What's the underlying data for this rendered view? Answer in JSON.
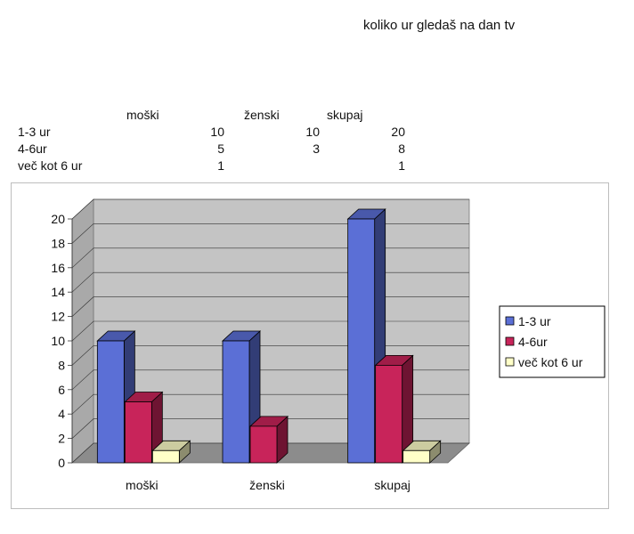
{
  "title": "koliko ur gledaš na dan tv",
  "table": {
    "headers": [
      "moški",
      "ženski",
      "skupaj"
    ],
    "rows": [
      {
        "label": "1-3 ur",
        "values": [
          "10",
          "10",
          "20"
        ]
      },
      {
        "label": "4-6ur",
        "values": [
          "5",
          "3",
          "8"
        ]
      },
      {
        "label": "več kot 6 ur",
        "values": [
          "1",
          "",
          "1"
        ]
      }
    ]
  },
  "chart_data": {
    "type": "bar",
    "categories": [
      "moški",
      "ženski",
      "skupaj"
    ],
    "series": [
      {
        "name": "1-3 ur",
        "values": [
          10,
          10,
          20
        ],
        "color": "#5b6fd6"
      },
      {
        "name": "4-6ur",
        "values": [
          5,
          3,
          8
        ],
        "color": "#c8245a"
      },
      {
        "name": "več kot 6 ur",
        "values": [
          1,
          0,
          1
        ],
        "color": "#ffffc8"
      }
    ],
    "yticks": [
      "0",
      "2",
      "4",
      "6",
      "8",
      "10",
      "12",
      "14",
      "16",
      "18",
      "20"
    ],
    "ylim": [
      0,
      20
    ],
    "grid": true,
    "legend": "right",
    "wall_color": "#c4c4c4",
    "floor_color": "#8c8c8c"
  }
}
